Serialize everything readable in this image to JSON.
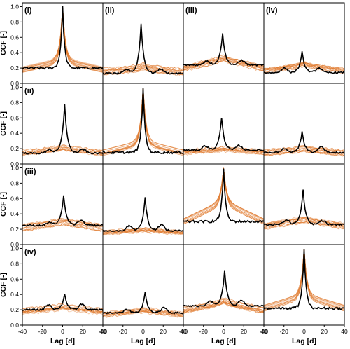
{
  "figure": {
    "y_axis_label": "CCF [-]",
    "x_axis_label": "Lag [d]",
    "x_ticks": [
      -40,
      -20,
      0,
      20,
      40
    ],
    "y_ticks": [
      0.0,
      0.2,
      0.4,
      0.6,
      0.8,
      1.0
    ],
    "panel_labels": [
      "(i)",
      "(ii)",
      "(iii)",
      "(iv)"
    ],
    "colors": {
      "observed": "#000000",
      "ensemble": "#e07a2e",
      "frame": "#000000"
    }
  },
  "chart_data": {
    "type": "line",
    "grid": false,
    "layout": "4x4 panel matrix",
    "xlim": [
      -40,
      40
    ],
    "ylim": [
      0,
      1.05
    ],
    "xlabel": "Lag [d]",
    "ylabel": "CCF [-]",
    "panels": [
      {
        "row": 1,
        "col": 1,
        "label_row": "(i)",
        "label_col": "(i)",
        "observed": {
          "peak": 1.0,
          "peak_lag": 0,
          "base": 0.2
        },
        "ensemble": {
          "peak": 1.0,
          "base_center": 0.3,
          "base_edge": 0.18
        }
      },
      {
        "row": 1,
        "col": 2,
        "label_col": "(ii)",
        "observed": {
          "peak": 0.78,
          "peak_lag": -2,
          "base": 0.13
        },
        "ensemble": {
          "peak": 0.22,
          "base_center": 0.2,
          "base_edge": 0.15
        }
      },
      {
        "row": 1,
        "col": 3,
        "label_col": "(iii)",
        "observed": {
          "peak": 0.66,
          "peak_lag": -1,
          "base": 0.24
        },
        "ensemble": {
          "peak": 0.33,
          "base_center": 0.32,
          "base_edge": 0.2
        }
      },
      {
        "row": 1,
        "col": 4,
        "label_col": "(iv)",
        "observed": {
          "peak": 0.41,
          "peak_lag": -2,
          "base": 0.14
        },
        "ensemble": {
          "peak": 0.24,
          "base_center": 0.22,
          "base_edge": 0.15
        }
      },
      {
        "row": 2,
        "col": 1,
        "label_row": "(ii)",
        "observed": {
          "peak": 0.78,
          "peak_lag": 2,
          "base": 0.14
        },
        "ensemble": {
          "peak": 0.22,
          "base_center": 0.2,
          "base_edge": 0.15
        }
      },
      {
        "row": 2,
        "col": 2,
        "observed": {
          "peak": 1.0,
          "peak_lag": 0,
          "base": 0.15
        },
        "ensemble": {
          "peak": 1.0,
          "base_center": 0.28,
          "base_edge": 0.15
        }
      },
      {
        "row": 2,
        "col": 3,
        "observed": {
          "peak": 0.61,
          "peak_lag": -2,
          "base": 0.18
        },
        "ensemble": {
          "peak": 0.2,
          "base_center": 0.2,
          "base_edge": 0.16
        }
      },
      {
        "row": 2,
        "col": 4,
        "observed": {
          "peak": 0.43,
          "peak_lag": -2,
          "base": 0.15
        },
        "ensemble": {
          "peak": 0.2,
          "base_center": 0.19,
          "base_edge": 0.14
        }
      },
      {
        "row": 3,
        "col": 1,
        "label_row": "(iii)",
        "observed": {
          "peak": 0.65,
          "peak_lag": 1,
          "base": 0.25
        },
        "ensemble": {
          "peak": 0.3,
          "base_center": 0.3,
          "base_edge": 0.22
        }
      },
      {
        "row": 3,
        "col": 2,
        "observed": {
          "peak": 0.61,
          "peak_lag": 2,
          "base": 0.18
        },
        "ensemble": {
          "peak": 0.2,
          "base_center": 0.2,
          "base_edge": 0.16
        }
      },
      {
        "row": 3,
        "col": 3,
        "observed": {
          "peak": 1.0,
          "peak_lag": 0,
          "base": 0.3
        },
        "ensemble": {
          "peak": 1.0,
          "base_center": 0.55,
          "base_edge": 0.3
        }
      },
      {
        "row": 3,
        "col": 4,
        "observed": {
          "peak": 0.71,
          "peak_lag": -1,
          "base": 0.26
        },
        "ensemble": {
          "peak": 0.32,
          "base_center": 0.32,
          "base_edge": 0.24
        }
      },
      {
        "row": 4,
        "col": 1,
        "label_row": "(iv)",
        "observed": {
          "peak": 0.41,
          "peak_lag": 2,
          "base": 0.2
        },
        "ensemble": {
          "peak": 0.24,
          "base_center": 0.23,
          "base_edge": 0.18
        }
      },
      {
        "row": 4,
        "col": 2,
        "observed": {
          "peak": 0.43,
          "peak_lag": 2,
          "base": 0.16
        },
        "ensemble": {
          "peak": 0.2,
          "base_center": 0.2,
          "base_edge": 0.14
        }
      },
      {
        "row": 4,
        "col": 3,
        "observed": {
          "peak": 0.71,
          "peak_lag": 1,
          "base": 0.25
        },
        "ensemble": {
          "peak": 0.32,
          "base_center": 0.3,
          "base_edge": 0.2
        }
      },
      {
        "row": 4,
        "col": 4,
        "observed": {
          "peak": 1.0,
          "peak_lag": 0,
          "base": 0.22
        },
        "ensemble": {
          "peak": 1.0,
          "base_center": 0.38,
          "base_edge": 0.22
        }
      }
    ]
  }
}
